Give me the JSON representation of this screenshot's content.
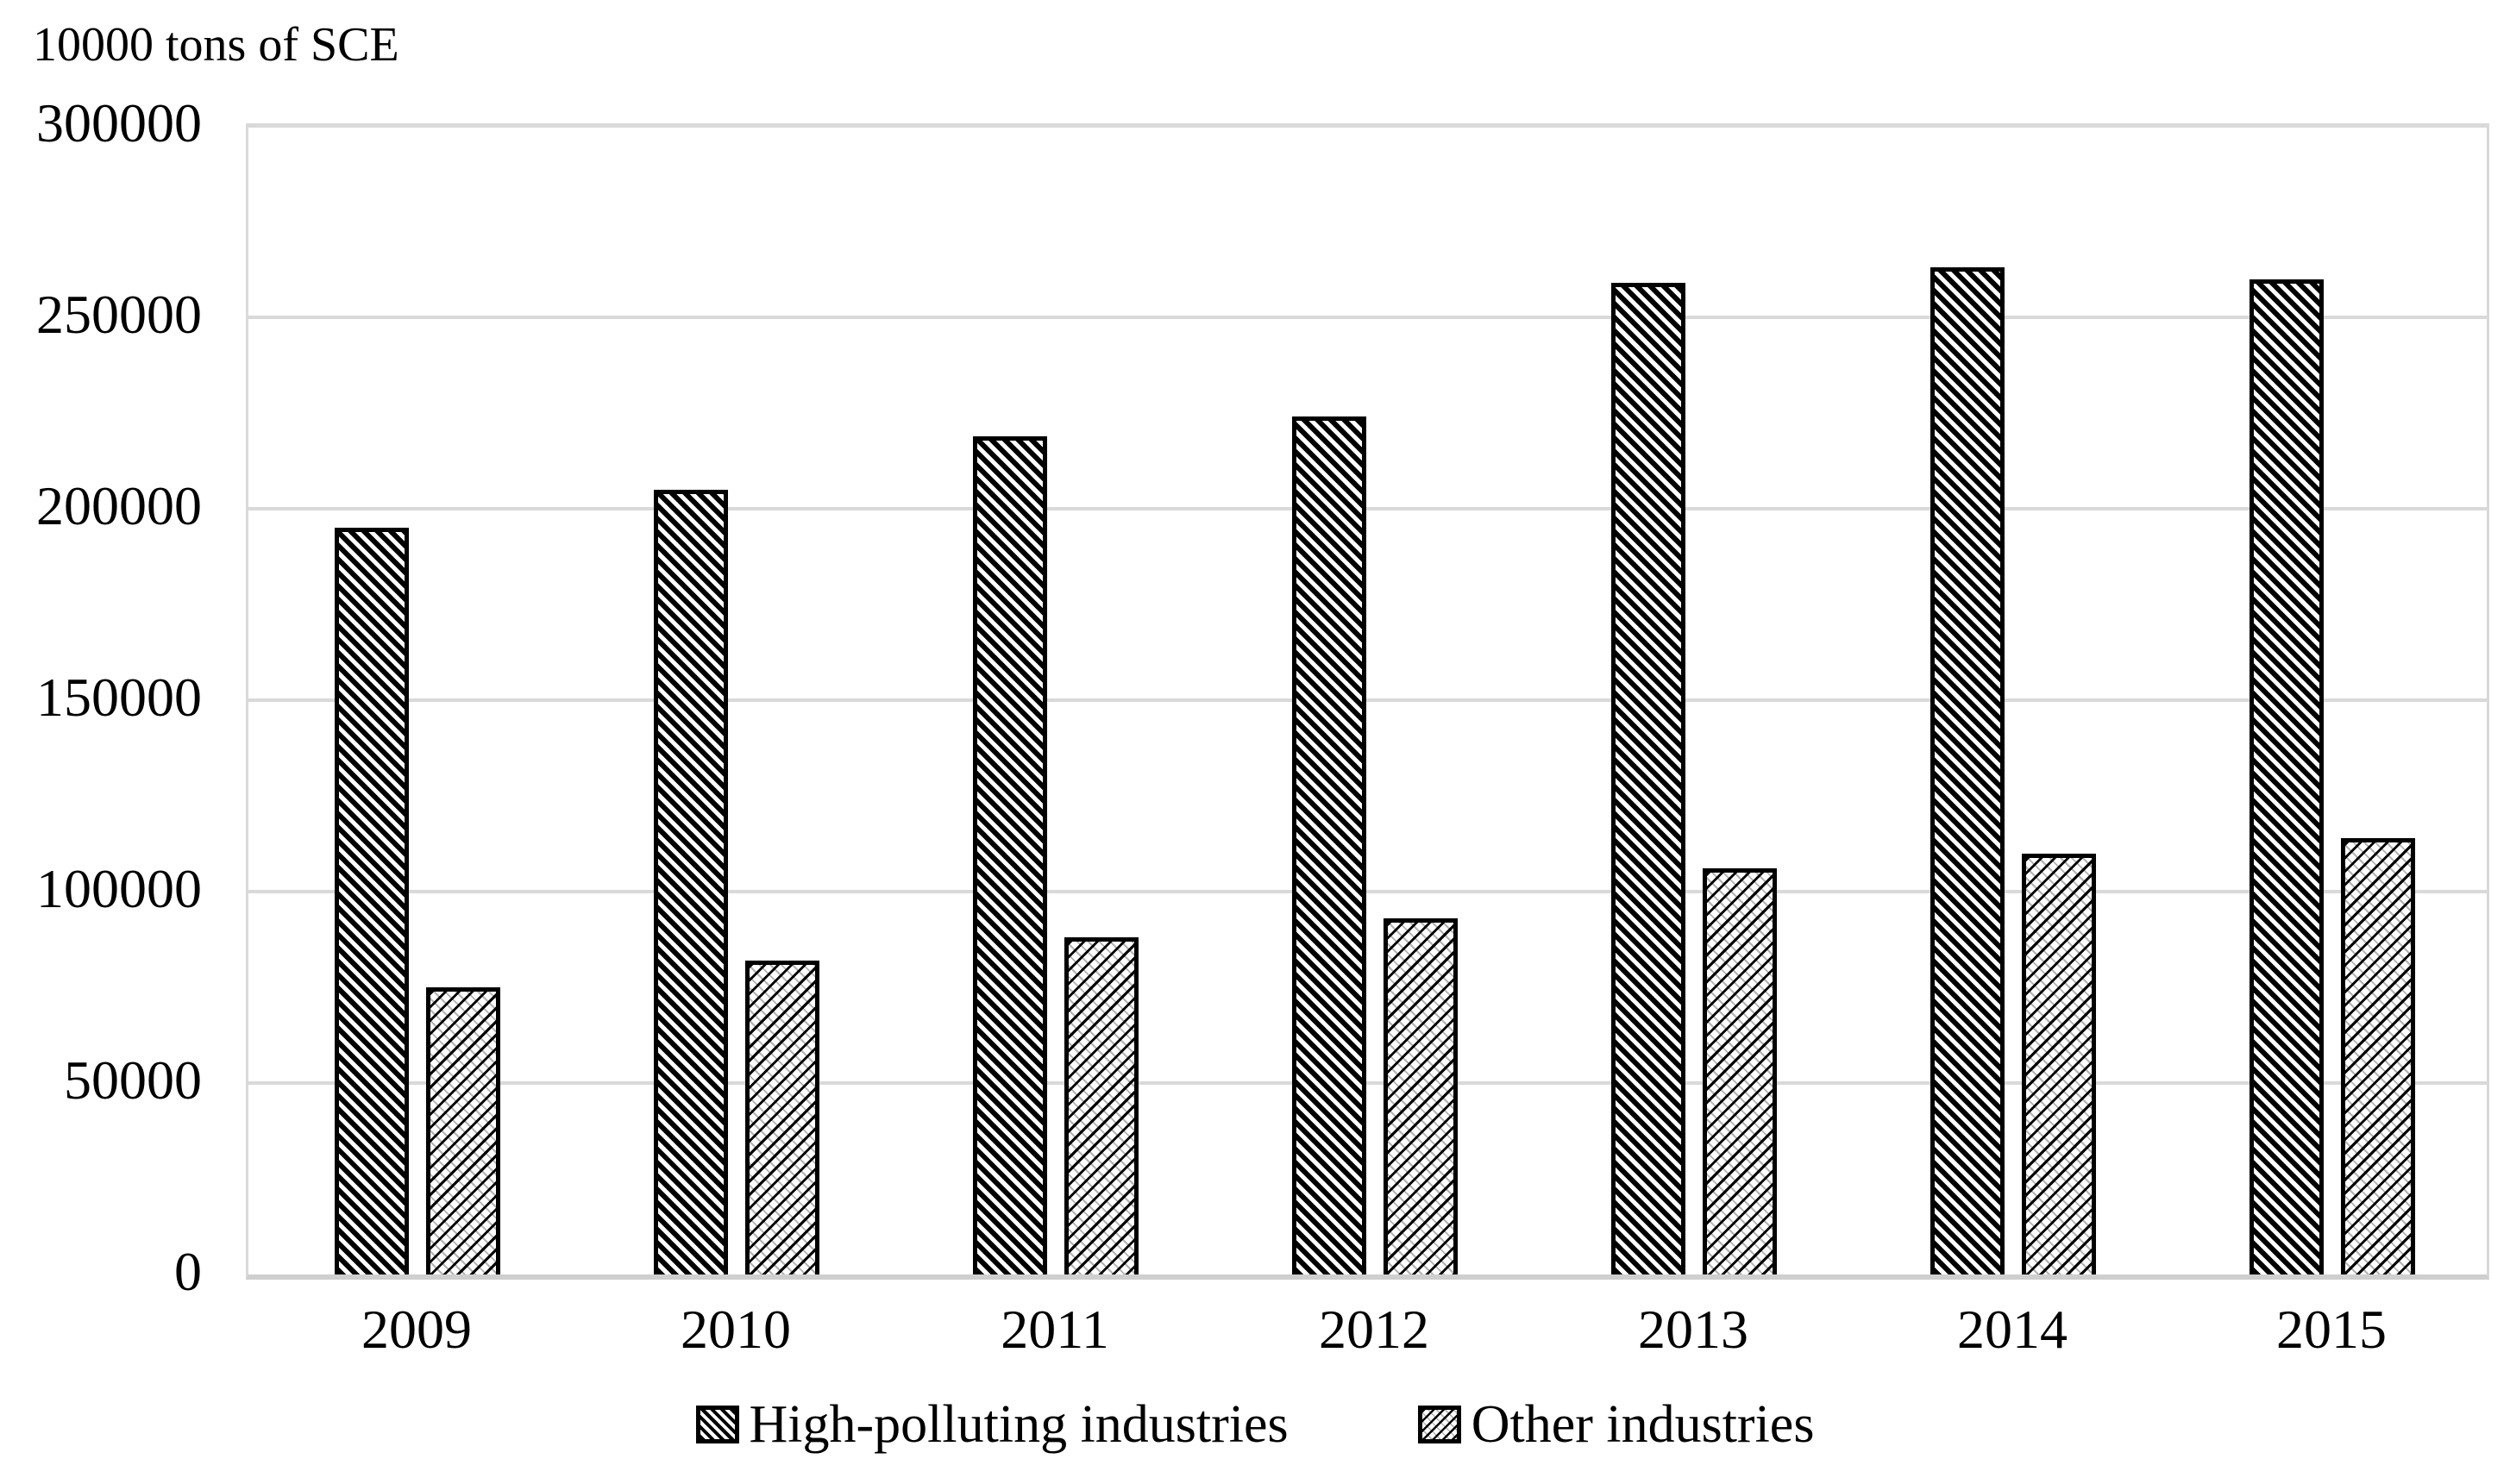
{
  "chart_data": {
    "type": "bar",
    "title": "",
    "unit_label": "10000 tons of SCE",
    "categories": [
      "2009",
      "2010",
      "2011",
      "2012",
      "2013",
      "2014",
      "2015"
    ],
    "series": [
      {
        "name": "High-polluting industries",
        "pattern": "diagonal-down-hatch",
        "values": [
          195000,
          205000,
          219000,
          224000,
          259000,
          263000,
          260000
        ]
      },
      {
        "name": "Other industries",
        "pattern": "diagonal-up-dotted-hatch",
        "values": [
          75000,
          82000,
          88000,
          93000,
          106000,
          110000,
          114000
        ]
      }
    ],
    "xlabel": "",
    "ylabel": "10000 tons of SCE",
    "ylim": [
      0,
      300000
    ],
    "ytick_step": 50000,
    "ytick_labels": [
      "0",
      "50000",
      "100000",
      "150000",
      "200000",
      "250000",
      "300000"
    ],
    "grid": true,
    "legend_position": "bottom-center"
  },
  "colors": {
    "background": "#ffffff",
    "text": "#000000",
    "gridline": "#d9d9d9",
    "axis_line": "#cfcfcf",
    "bar_border": "#000000",
    "hatch_fill": "#000000"
  }
}
